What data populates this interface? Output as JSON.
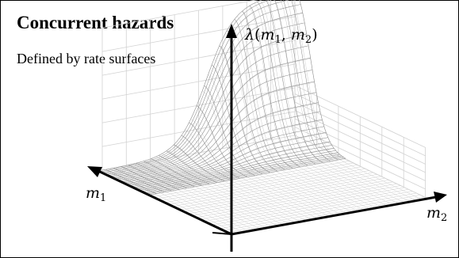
{
  "title": "Concurrent hazards",
  "subtitle": "Defined by rate surfaces",
  "axes": {
    "vertical": {
      "symbol": "λ",
      "args": [
        "m",
        "1",
        "m",
        "2"
      ]
    },
    "left": {
      "symbol": "m",
      "subscript": "1"
    },
    "right": {
      "symbol": "m",
      "subscript": "2"
    }
  },
  "colors": {
    "axis": "#000000",
    "mesh": "#9a9a9a",
    "backgrid": "#d2d2d2",
    "floor": "#cfcfcf"
  }
}
